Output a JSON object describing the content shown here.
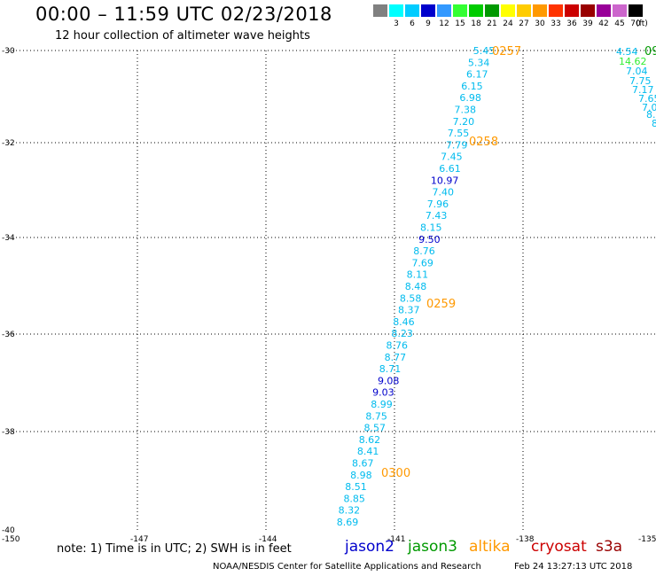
{
  "header": {
    "title": "00:00 – 11:59 UTC 02/23/2018",
    "subtitle": "12 hour collection of altimeter wave heights"
  },
  "legend": {
    "swatches": [
      {
        "color": "#808080",
        "label": ""
      },
      {
        "color": "#00ffff",
        "label": "3"
      },
      {
        "color": "#00ccff",
        "label": "6"
      },
      {
        "color": "#0000cc",
        "label": "9"
      },
      {
        "color": "#3399ff",
        "label": "12"
      },
      {
        "color": "#33ff33",
        "label": "15"
      },
      {
        "color": "#00cc00",
        "label": "18"
      },
      {
        "color": "#009900",
        "label": "21"
      },
      {
        "color": "#ffff00",
        "label": "24"
      },
      {
        "color": "#ffcc00",
        "label": "27"
      },
      {
        "color": "#ff9900",
        "label": "30"
      },
      {
        "color": "#ff3300",
        "label": "33"
      },
      {
        "color": "#cc0000",
        "label": "36"
      },
      {
        "color": "#990000",
        "label": "39"
      },
      {
        "color": "#990099",
        "label": "42"
      },
      {
        "color": "#cc66cc",
        "label": "45"
      },
      {
        "color": "#000000",
        "label": "70"
      }
    ],
    "unit": "(ft)"
  },
  "axes": {
    "lat_labels": [
      "-30",
      "-32",
      "-34",
      "-36",
      "-38",
      "-40"
    ],
    "lon_labels": [
      "-150",
      "-147",
      "-144",
      "-141",
      "-138",
      "-135"
    ]
  },
  "colors": {
    "jason2": "#0000cc",
    "jason3": "#009900",
    "altika": "#ff9900",
    "cryosat": "#cc0000",
    "s3a": "#990000",
    "wave_light": "#00bbee",
    "wave_green": "#33ee33",
    "time_orange": "#ff9900"
  },
  "track": [
    {
      "label": "5.45",
      "color": "#00bbee"
    },
    {
      "label": "5.34",
      "color": "#00bbee"
    },
    {
      "label": "6.17",
      "color": "#00bbee"
    },
    {
      "label": "6.15",
      "color": "#00bbee"
    },
    {
      "label": "6.98",
      "color": "#00bbee"
    },
    {
      "label": "7.38",
      "color": "#00bbee"
    },
    {
      "label": "7.20",
      "color": "#00bbee"
    },
    {
      "label": "7.55",
      "color": "#00bbee"
    },
    {
      "label": "7.79",
      "color": "#00bbee"
    },
    {
      "label": "7.45",
      "color": "#00bbee"
    },
    {
      "label": "6.61",
      "color": "#00bbee"
    },
    {
      "label": "10.97",
      "color": "#0000cc"
    },
    {
      "label": "7.40",
      "color": "#00bbee"
    },
    {
      "label": "7.96",
      "color": "#00bbee"
    },
    {
      "label": "7.43",
      "color": "#00bbee"
    },
    {
      "label": "8.15",
      "color": "#00bbee"
    },
    {
      "label": "9.50",
      "color": "#0000cc"
    },
    {
      "label": "8.76",
      "color": "#00bbee"
    },
    {
      "label": "7.69",
      "color": "#00bbee"
    },
    {
      "label": "8.11",
      "color": "#00bbee"
    },
    {
      "label": "8.48",
      "color": "#00bbee"
    },
    {
      "label": "8.58",
      "color": "#00bbee"
    },
    {
      "label": "8.37",
      "color": "#00bbee"
    },
    {
      "label": "8.46",
      "color": "#00bbee"
    },
    {
      "label": "8.23",
      "color": "#00bbee"
    },
    {
      "label": "8.76",
      "color": "#00bbee"
    },
    {
      "label": "8.77",
      "color": "#00bbee"
    },
    {
      "label": "8.71",
      "color": "#00bbee"
    },
    {
      "label": "9.08",
      "color": "#0000cc"
    },
    {
      "label": "9.03",
      "color": "#0000cc"
    },
    {
      "label": "8.99",
      "color": "#00bbee"
    },
    {
      "label": "8.75",
      "color": "#00bbee"
    },
    {
      "label": "8.57",
      "color": "#00bbee"
    },
    {
      "label": "8.62",
      "color": "#00bbee"
    },
    {
      "label": "8.41",
      "color": "#00bbee"
    },
    {
      "label": "8.67",
      "color": "#00bbee"
    },
    {
      "label": "8.98",
      "color": "#00bbee"
    },
    {
      "label": "8.51",
      "color": "#00bbee"
    },
    {
      "label": "8.85",
      "color": "#00bbee"
    },
    {
      "label": "8.32",
      "color": "#00bbee"
    },
    {
      "label": "8.69",
      "color": "#00bbee"
    }
  ],
  "times": [
    "0257",
    "0258",
    "0259",
    "0300"
  ],
  "track2": [
    {
      "label": "4.54",
      "color": "#00bbee"
    },
    {
      "label": "09",
      "color": "#009900"
    },
    {
      "label": "14.62",
      "color": "#33ee33"
    },
    {
      "label": "7.04",
      "color": "#00bbee"
    },
    {
      "label": "7.75",
      "color": "#00bbee"
    },
    {
      "label": "7.17",
      "color": "#00bbee"
    },
    {
      "label": "7.65",
      "color": "#00bbee"
    },
    {
      "label": "7.0",
      "color": "#00bbee"
    },
    {
      "label": "8.",
      "color": "#00bbee"
    },
    {
      "label": "8",
      "color": "#00bbee"
    }
  ],
  "footer": {
    "note": "note:  1) Time is in UTC; 2) SWH is in feet",
    "missions": [
      "jason2",
      "jason3",
      "altika",
      "cryosat",
      "s3a"
    ],
    "credit": "NOAA/NESDIS Center for Satellite Applications and Research",
    "timestamp": "Feb 24 13:27:13 UTC 2018"
  }
}
